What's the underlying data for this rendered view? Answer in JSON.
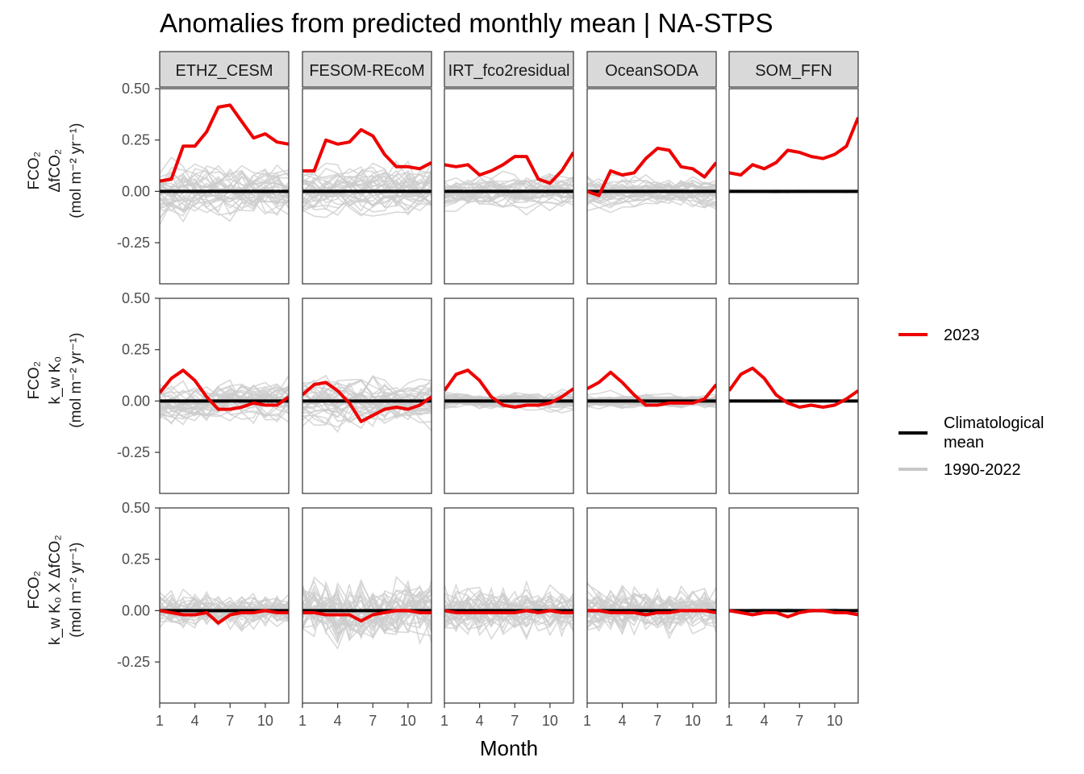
{
  "chart_data": {
    "type": "line",
    "title": "Anomalies from predicted monthly mean | NA-STPS",
    "xlabel": "Month",
    "x": [
      1,
      2,
      3,
      4,
      5,
      6,
      7,
      8,
      9,
      10,
      11,
      12
    ],
    "x_ticks": [
      1,
      4,
      7,
      10
    ],
    "x_tick_labels": [
      "1",
      "4",
      "7",
      "10"
    ],
    "ylim": [
      -0.45,
      0.5
    ],
    "y_ticks": [
      -0.25,
      0,
      0.25,
      0.5
    ],
    "y_tick_labels": [
      "-0.25",
      "0.00",
      "0.25",
      "0.50"
    ],
    "grid": false,
    "legend_position": "right",
    "colors": {
      "year_2023": "#ee0000",
      "climatological": "#000000",
      "background_years": "#c8c8c8"
    },
    "facet_columns": [
      "ETHZ_CESM",
      "FESOM-REcoM",
      "IRT_fco2residual",
      "OceanSODA",
      "SOM_FFN"
    ],
    "facet_rows": [
      {
        "label_lines": [
          "FCO₂",
          "ΔfCO₂",
          "(mol m⁻² yr⁻¹)"
        ]
      },
      {
        "label_lines": [
          "FCO₂",
          "k_w K₀",
          "(mol m⁻² yr⁻¹)"
        ]
      },
      {
        "label_lines": [
          "FCO₂",
          "k_w K₀ X ΔfCO₂",
          "(mol m⁻² yr⁻¹)"
        ]
      }
    ],
    "legend": {
      "year_2023": "2023",
      "climatological_line1": "Climatological",
      "climatological_line2": "mean",
      "background": "1990-2022"
    },
    "climatological_mean": [
      0,
      0,
      0,
      0,
      0,
      0,
      0,
      0,
      0,
      0,
      0,
      0
    ],
    "background_spread": [
      [
        0.12,
        0.1,
        0.06
      ],
      [
        0.12,
        0.12,
        0.11
      ],
      [
        0.08,
        0.04,
        0.08
      ],
      [
        0.07,
        0.03,
        0.08
      ],
      [
        0.005,
        0.003,
        0.006
      ]
    ],
    "series_2023": [
      [
        [
          0.05,
          0.06,
          0.22,
          0.22,
          0.29,
          0.41,
          0.42,
          0.34,
          0.26,
          0.28,
          0.24,
          0.23
        ],
        [
          0.1,
          0.1,
          0.25,
          0.23,
          0.24,
          0.3,
          0.27,
          0.18,
          0.12,
          0.12,
          0.11,
          0.14
        ],
        [
          0.13,
          0.12,
          0.13,
          0.08,
          0.1,
          0.13,
          0.17,
          0.17,
          0.06,
          0.04,
          0.1,
          0.19
        ],
        [
          0.0,
          -0.02,
          0.1,
          0.08,
          0.09,
          0.16,
          0.21,
          0.2,
          0.12,
          0.11,
          0.07,
          0.14
        ],
        [
          0.09,
          0.08,
          0.13,
          0.11,
          0.14,
          0.2,
          0.19,
          0.17,
          0.16,
          0.18,
          0.22,
          0.36
        ]
      ],
      [
        [
          0.04,
          0.11,
          0.15,
          0.1,
          0.02,
          -0.04,
          -0.04,
          -0.03,
          -0.01,
          -0.02,
          -0.02,
          0.02
        ],
        [
          0.03,
          0.08,
          0.09,
          0.05,
          -0.01,
          -0.1,
          -0.07,
          -0.04,
          -0.03,
          -0.04,
          -0.02,
          0.02
        ],
        [
          0.05,
          0.13,
          0.15,
          0.1,
          0.02,
          -0.02,
          -0.03,
          -0.02,
          -0.02,
          -0.01,
          0.02,
          0.06
        ],
        [
          0.06,
          0.09,
          0.14,
          0.09,
          0.03,
          -0.02,
          -0.02,
          -0.01,
          -0.01,
          -0.01,
          0.01,
          0.08
        ],
        [
          0.05,
          0.13,
          0.16,
          0.11,
          0.03,
          -0.01,
          -0.03,
          -0.02,
          -0.03,
          -0.02,
          0.01,
          0.05
        ]
      ],
      [
        [
          0.0,
          -0.01,
          -0.02,
          -0.02,
          -0.01,
          -0.06,
          -0.02,
          -0.01,
          -0.01,
          0.0,
          -0.01,
          -0.01
        ],
        [
          -0.01,
          -0.01,
          -0.02,
          -0.02,
          -0.02,
          -0.05,
          -0.02,
          -0.01,
          0.0,
          0.0,
          -0.01,
          -0.01
        ],
        [
          0.0,
          -0.01,
          -0.01,
          -0.01,
          -0.01,
          -0.01,
          -0.01,
          0.0,
          -0.01,
          0.0,
          -0.01,
          -0.01
        ],
        [
          0.0,
          0.0,
          -0.01,
          -0.01,
          -0.01,
          -0.02,
          -0.01,
          -0.01,
          0.0,
          0.0,
          0.0,
          -0.01
        ],
        [
          0.0,
          -0.01,
          -0.02,
          -0.01,
          -0.01,
          -0.03,
          -0.01,
          0.0,
          0.0,
          -0.01,
          -0.01,
          -0.02
        ]
      ]
    ]
  }
}
